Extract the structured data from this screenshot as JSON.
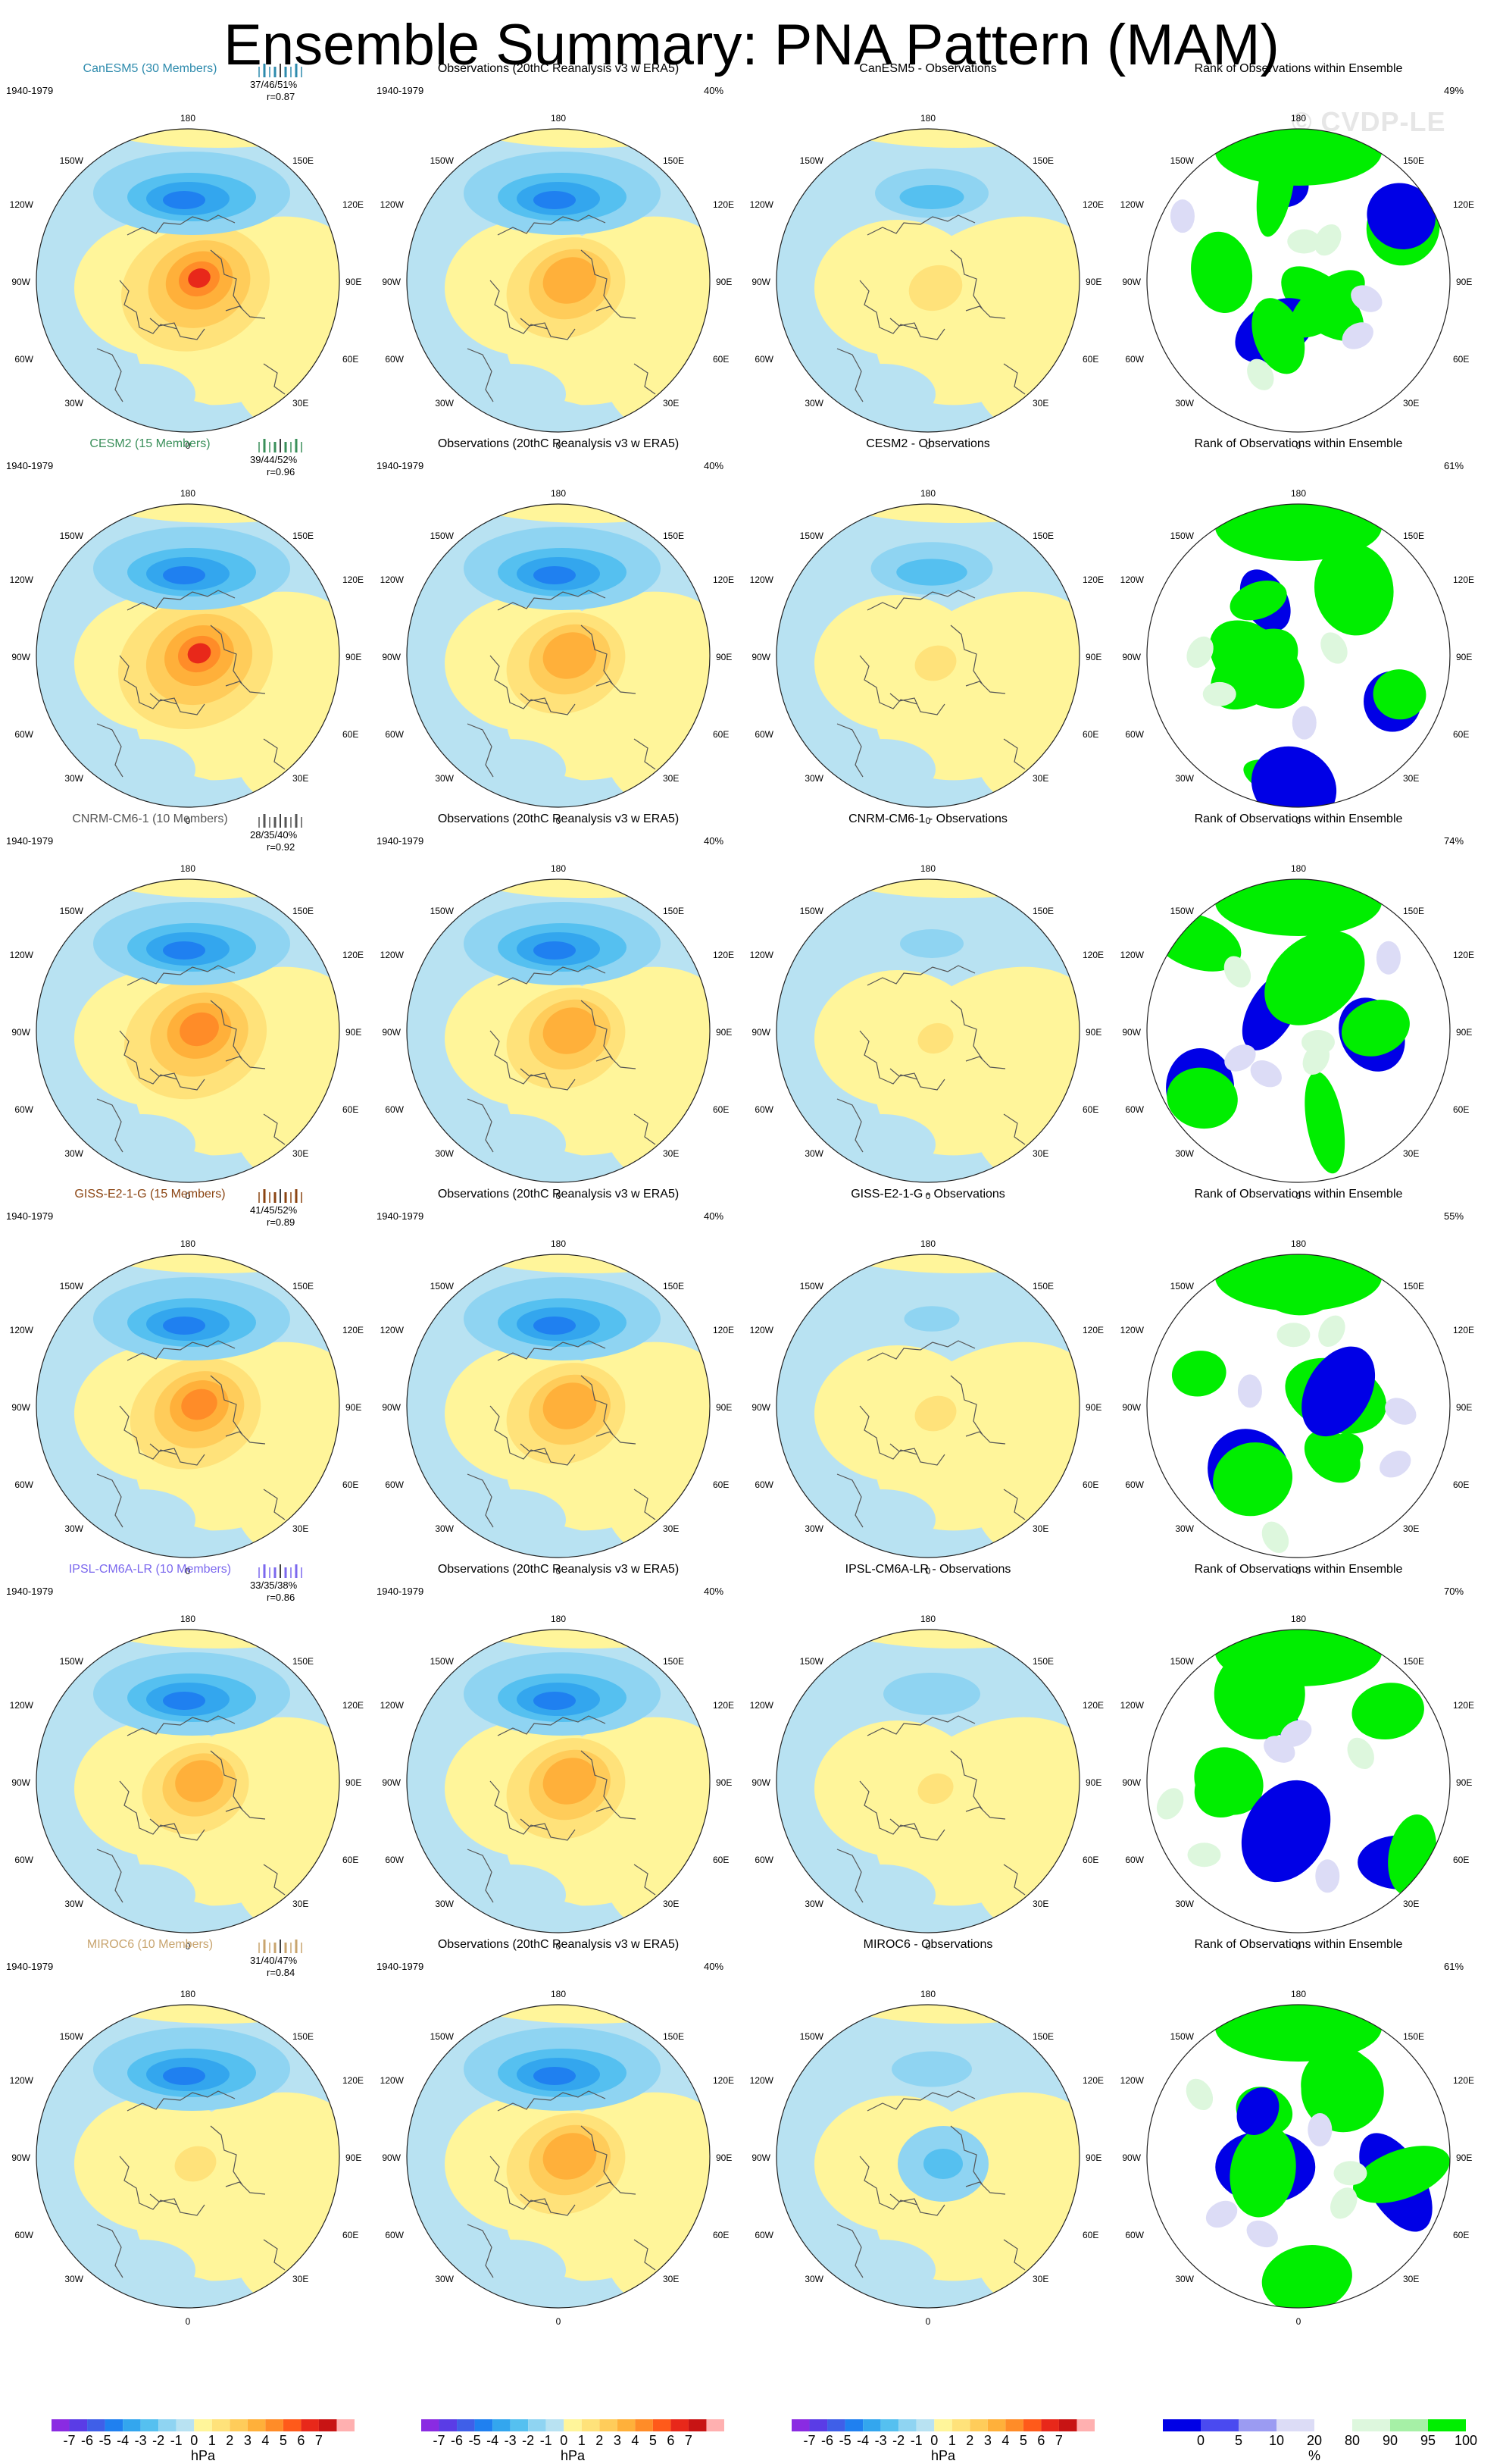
{
  "title": "Ensemble Summary: PNA Pattern (MAM)",
  "watermark": "© CVDP-LE",
  "period": "1940-1979",
  "lon_labels": [
    "180",
    "150W",
    "150E",
    "120W",
    "120E",
    "90W",
    "90E",
    "60W",
    "60E",
    "30W",
    "30E",
    "0"
  ],
  "rows": [
    {
      "model": "CanESM5",
      "member_title": "CanESM5 (30 Members)",
      "color": "#2e8bad",
      "stat": "37/46/51%",
      "r": "r=0.87",
      "rank_pct": "49%",
      "diff_title": "CanESM5 - Observations",
      "model_strength": 1.25,
      "diff_strength": 0.45,
      "diff_neg": 0.5
    },
    {
      "model": "CESM2",
      "member_title": "CESM2 (15 Members)",
      "color": "#3a8f5a",
      "stat": "39/44/52%",
      "r": "r=0.96",
      "rank_pct": "61%",
      "diff_title": "CESM2 - Observations",
      "model_strength": 1.3,
      "diff_strength": 0.35,
      "diff_neg": 0.55
    },
    {
      "model": "CNRM-CM6-1",
      "member_title": "CNRM-CM6-1 (10 Members)",
      "color": "#555555",
      "stat": "28/35/40%",
      "r": "r=0.92",
      "rank_pct": "74%",
      "diff_title": "CNRM-CM6-1 - Observations",
      "model_strength": 1.2,
      "diff_strength": 0.3,
      "diff_neg": 0.2
    },
    {
      "model": "GISS-E2-1-G",
      "member_title": "GISS-E2-1-G (15 Members)",
      "color": "#8b4513",
      "stat": "41/45/52%",
      "r": "r=0.89",
      "rank_pct": "55%",
      "diff_title": "GISS-E2-1-G - Observations",
      "model_strength": 1.1,
      "diff_strength": 0.35,
      "diff_neg": 0.15
    },
    {
      "model": "IPSL-CM6A-LR",
      "member_title": "IPSL-CM6A-LR (10 Members)",
      "color": "#7b68ee",
      "stat": "33/35/38%",
      "r": "r=0.86",
      "rank_pct": "70%",
      "diff_title": "IPSL-CM6A-LR - Observations",
      "model_strength": 0.9,
      "diff_strength": 0.3,
      "diff_neg": 0.4
    },
    {
      "model": "MIROC6",
      "member_title": "MIROC6 (10 Members)",
      "color": "#c8a46e",
      "stat": "31/40/47%",
      "r": "r=0.84",
      "rank_pct": "61%",
      "diff_title": "MIROC6 - Observations",
      "model_strength": 0.35,
      "diff_strength": -0.4,
      "diff_neg": 0.3
    }
  ],
  "obs_title": "Observations (20thC Reanalysis v3 w ERA5)",
  "obs_pct": "40%",
  "rank_title": "Rank of Observations within Ensemble",
  "chart_data": [
    {
      "type": "heatmap",
      "title": "Ensemble Summary: PNA Pattern (MAM)",
      "panel_kind": "model / observations / difference",
      "colorbar": {
        "units": "hPa",
        "levels": [
          "-7",
          "-6",
          "-5",
          "-4",
          "-3",
          "-2",
          "-1",
          "0",
          "1",
          "2",
          "3",
          "4",
          "5",
          "6",
          "7"
        ],
        "colors": [
          "#8a2be2",
          "#5a3ce6",
          "#3f5fe8",
          "#1f80f0",
          "#33a6ee",
          "#55c0f0",
          "#8fd4f2",
          "#b8e2f2",
          "#fff59a",
          "#ffe27a",
          "#ffcc5a",
          "#ffb03a",
          "#ff8c28",
          "#ff5a1a",
          "#e8281a",
          "#c81414",
          "#ffb0b0"
        ]
      }
    },
    {
      "type": "heatmap",
      "title": "Rank of Observations within Ensemble",
      "colorbar": {
        "units": "%",
        "levels": [
          "0",
          "5",
          "10",
          "20",
          "80",
          "90",
          "95",
          "100"
        ],
        "colors": [
          "#0000e6",
          "#4a4af0",
          "#9b9bf2",
          "#dcdcf6",
          "#ffffff",
          "#ddf7dd",
          "#a6f0a6",
          "#00ee00"
        ]
      }
    }
  ]
}
